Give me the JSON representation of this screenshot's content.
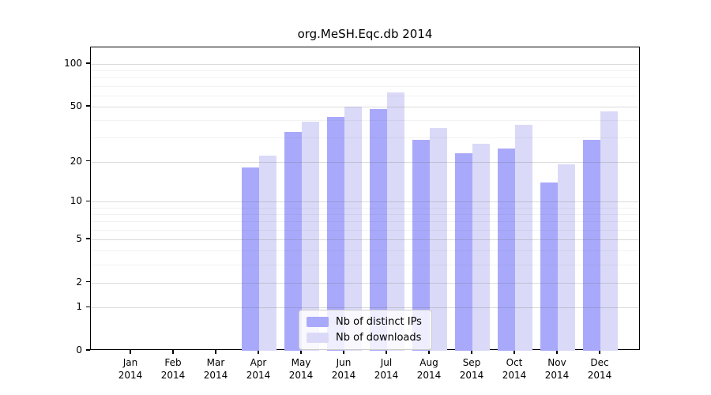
{
  "chart_data": {
    "type": "bar",
    "title": "org.MeSH.Eqc.db 2014",
    "categories": [
      "Jan",
      "Feb",
      "Mar",
      "Apr",
      "May",
      "Jun",
      "Jul",
      "Aug",
      "Sep",
      "Oct",
      "Nov",
      "Dec"
    ],
    "year_label": "2014",
    "series": [
      {
        "name": "Nb of distinct IPs",
        "color": "#a9a9fb",
        "values": [
          0,
          0,
          0,
          18,
          33,
          42,
          48,
          29,
          23,
          25,
          14,
          29
        ]
      },
      {
        "name": "Nb of downloads",
        "color": "#dadaf8",
        "values": [
          0,
          0,
          0,
          22,
          39,
          50,
          63,
          35,
          27,
          37,
          19,
          46
        ]
      }
    ],
    "yscale": "log1p",
    "yticks": [
      0,
      1,
      2,
      5,
      10,
      20,
      50,
      100
    ],
    "yticks_minor": [
      3,
      4,
      6,
      7,
      8,
      9,
      30,
      40,
      60,
      70,
      80,
      90
    ],
    "ylim": [
      0,
      131
    ],
    "grid": true,
    "legend_position": "inside-bottom-center"
  }
}
